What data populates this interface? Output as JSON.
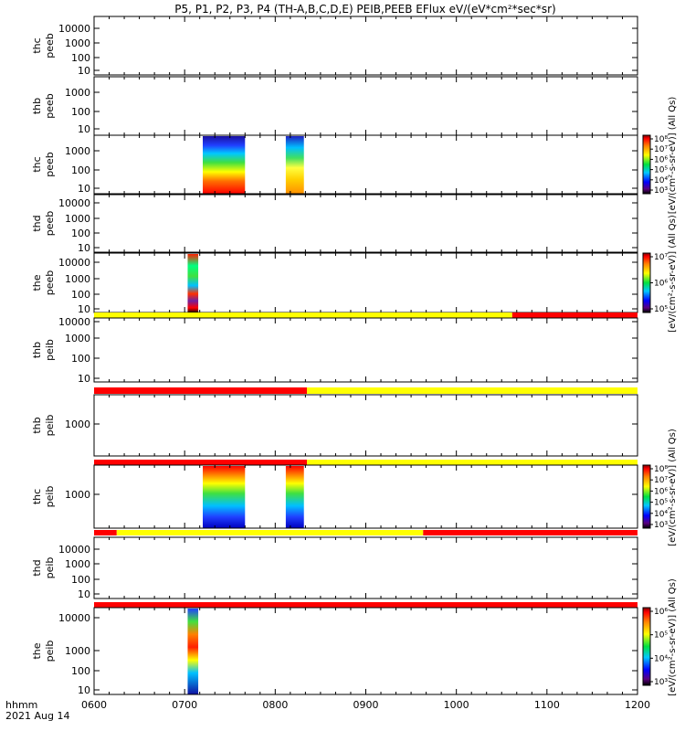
{
  "chart_data": {
    "type": "heatmap",
    "title": "P5, P1, P2, P3, P4 (TH-A,B,C,D,E) PEIB,PEEB EFlux eV/(eV*cm²*sec*sr)",
    "x_ticks": [
      "0600",
      "0700",
      "0800",
      "0900",
      "1000",
      "1100",
      "1200"
    ],
    "x_range_hhmm": [
      "0600",
      "1200"
    ],
    "x_label_line1": "hhmm",
    "x_label_line2": "2021 Aug 14",
    "panels": [
      {
        "probe": "thc",
        "product": "peeb",
        "y_scale": "log",
        "y_ticks": [
          "10",
          "100",
          "1000",
          "10000"
        ],
        "status_bar": null,
        "data": []
      },
      {
        "probe": "thb",
        "product": "peeb",
        "y_scale": "log",
        "y_ticks": [
          "10",
          "100",
          "1000"
        ],
        "status_bar": null,
        "data": []
      },
      {
        "probe": "thc",
        "product": "peeb",
        "y_scale": "log",
        "y_ticks": [
          "10",
          "100",
          "1000"
        ],
        "status_bar": null,
        "data": [
          {
            "t_start": "0712",
            "t_end": "0740"
          },
          {
            "t_start": "0807",
            "t_end": "0819"
          }
        ]
      },
      {
        "probe": "thd",
        "product": "peeb",
        "y_scale": "log",
        "y_ticks": [
          "10",
          "100",
          "1000",
          "10000"
        ],
        "status_bar": null,
        "data": []
      },
      {
        "probe": "the",
        "product": "peeb",
        "y_scale": "log",
        "y_ticks": [
          "10",
          "100",
          "1000",
          "10000"
        ],
        "status_bar": null,
        "data": [
          {
            "t_start": "0702",
            "t_end": "0709"
          }
        ]
      },
      {
        "probe": "thb",
        "product": "peib",
        "y_scale": "log",
        "y_ticks": [
          "10",
          "100",
          "1000",
          "10000"
        ],
        "status_bar": [
          {
            "t_start": "0600",
            "t_end": "1037",
            "color": "#ffff00"
          },
          {
            "t_start": "1037",
            "t_end": "1200",
            "color": "#ff0000"
          }
        ],
        "data": []
      },
      {
        "probe": "thb",
        "product": "peib",
        "y_scale": "log",
        "y_ticks": [
          "1000"
        ],
        "status_bar": [
          {
            "t_start": "0600",
            "t_end": "0821",
            "color": "#ff0000"
          },
          {
            "t_start": "0821",
            "t_end": "1200",
            "color": "#ffff00"
          }
        ],
        "data": []
      },
      {
        "probe": "thc",
        "product": "peib",
        "y_scale": "log",
        "y_ticks": [
          "1000"
        ],
        "status_bar": [
          {
            "t_start": "0600",
            "t_end": "0821",
            "color": "#ff0000"
          },
          {
            "t_start": "0821",
            "t_end": "1200",
            "color": "#ffff00"
          }
        ],
        "data": [
          {
            "t_start": "0712",
            "t_end": "0740"
          },
          {
            "t_start": "0807",
            "t_end": "0819"
          }
        ]
      },
      {
        "probe": "thd",
        "product": "peib",
        "y_scale": "log",
        "y_ticks": [
          "10",
          "100",
          "1000",
          "10000"
        ],
        "status_bar": [
          {
            "t_start": "0600",
            "t_end": "0615",
            "color": "#ff0000"
          },
          {
            "t_start": "0615",
            "t_end": "0938",
            "color": "#ffff00"
          },
          {
            "t_start": "0938",
            "t_end": "1200",
            "color": "#ff0000"
          }
        ],
        "data": []
      },
      {
        "probe": "the",
        "product": "peib",
        "y_scale": "log",
        "y_ticks": [
          "10",
          "100",
          "1000",
          "10000"
        ],
        "status_bar": [
          {
            "t_start": "0600",
            "t_end": "1200",
            "color": "#ff0000"
          }
        ],
        "data": [
          {
            "t_start": "0702",
            "t_end": "0709"
          }
        ]
      }
    ],
    "colorbars": [
      {
        "ticks": [
          "10³",
          "10⁴",
          "10⁵",
          "10⁶",
          "10⁷",
          "10⁸"
        ],
        "label": "[eV/(cm²-s-sr-eV)] (All Qs)"
      },
      {
        "ticks": [
          "10⁵",
          "10⁶",
          "10⁷"
        ],
        "label": "[eV/(cm²-s-sr-eV)] (All Qs)"
      },
      {
        "ticks": [
          "10³",
          "10⁴",
          "10⁵",
          "10⁶",
          "10⁷",
          "10⁸"
        ],
        "label": "[eV/(cm²-s-sr-eV)] (All Qs)"
      },
      {
        "ticks": [
          "10³",
          "10⁴",
          "10⁵",
          "10⁶"
        ],
        "label": "[eV/(cm²-s-sr-eV)] (All Qs)"
      }
    ]
  }
}
